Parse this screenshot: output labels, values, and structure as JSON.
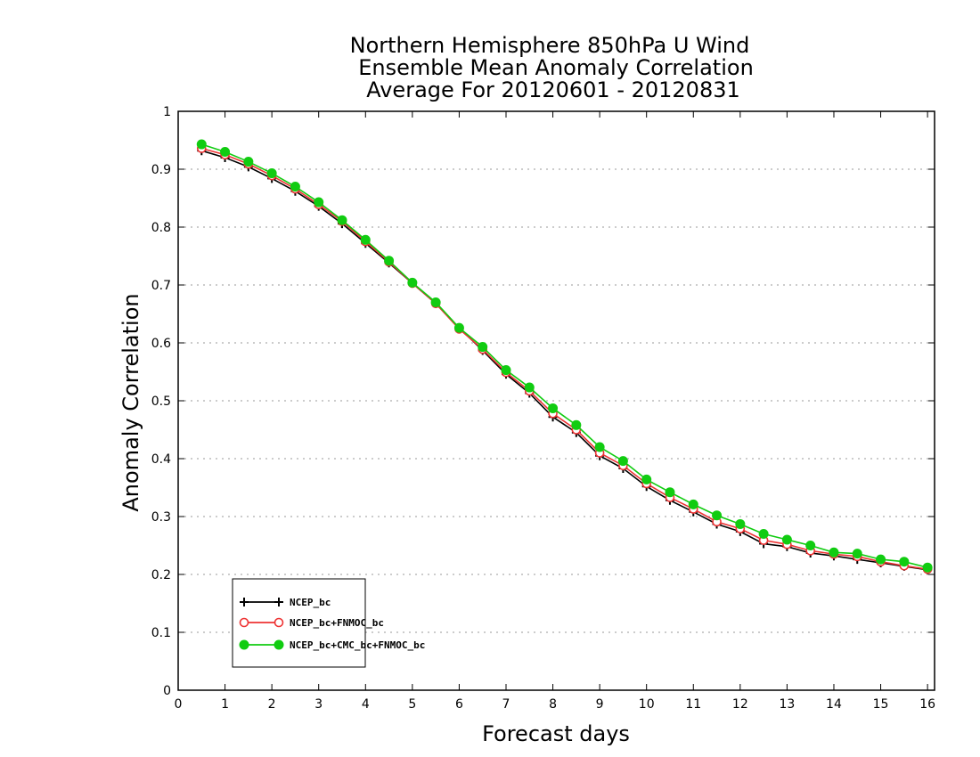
{
  "chart_data": {
    "type": "line",
    "title": "Northern Hemisphere 850hPa U Wind",
    "subtitle": "Ensemble Mean Anomaly Correlation",
    "subtitle2": "Average For 20120601 - 20120831",
    "xlabel": "Forecast days",
    "ylabel": "Anomaly Correlation",
    "xlim": [
      0,
      16.15
    ],
    "ylim": [
      0,
      1
    ],
    "xticks": [
      "0",
      "1",
      "2",
      "3",
      "4",
      "5",
      "6",
      "7",
      "8",
      "9",
      "10",
      "11",
      "12",
      "13",
      "14",
      "15",
      "16"
    ],
    "yticks": [
      "0",
      "0.1",
      "0.2",
      "0.3",
      "0.4",
      "0.5",
      "0.6",
      "0.7",
      "0.8",
      "0.9",
      "1"
    ],
    "grid": "horizontal dotted",
    "legend_position": "bottom-left",
    "x": [
      0.5,
      1,
      1.5,
      2,
      2.5,
      3,
      3.5,
      4,
      4.5,
      5,
      5.5,
      6,
      6.5,
      7,
      7.5,
      8,
      8.5,
      9,
      9.5,
      10,
      10.5,
      11,
      11.5,
      12,
      12.5,
      13,
      13.5,
      14,
      14.5,
      15,
      15.5,
      16
    ],
    "series": [
      {
        "name": "NCEP_bc",
        "color": "#000000",
        "marker": "plus",
        "values": [
          0.932,
          0.92,
          0.904,
          0.884,
          0.862,
          0.836,
          0.806,
          0.772,
          0.738,
          0.703,
          0.668,
          0.626,
          0.587,
          0.546,
          0.513,
          0.472,
          0.445,
          0.405,
          0.383,
          0.352,
          0.328,
          0.308,
          0.287,
          0.274,
          0.253,
          0.248,
          0.237,
          0.232,
          0.226,
          0.22,
          0.214,
          0.208
        ]
      },
      {
        "name": "NCEP_bc+FNMOC_bc",
        "color": "#ee3333",
        "marker": "open-circle",
        "values": [
          0.936,
          0.925,
          0.909,
          0.889,
          0.866,
          0.839,
          0.81,
          0.775,
          0.74,
          0.703,
          0.668,
          0.624,
          0.589,
          0.549,
          0.517,
          0.478,
          0.45,
          0.41,
          0.388,
          0.357,
          0.333,
          0.313,
          0.291,
          0.279,
          0.259,
          0.252,
          0.241,
          0.235,
          0.231,
          0.222,
          0.215,
          0.209
        ]
      },
      {
        "name": "NCEP_bc+CMC_bc+FNMOC_bc",
        "color": "#11cc11",
        "marker": "filled-circle",
        "values": [
          0.943,
          0.93,
          0.913,
          0.893,
          0.87,
          0.843,
          0.812,
          0.778,
          0.742,
          0.704,
          0.67,
          0.626,
          0.593,
          0.553,
          0.523,
          0.487,
          0.458,
          0.42,
          0.396,
          0.364,
          0.342,
          0.321,
          0.302,
          0.287,
          0.27,
          0.26,
          0.25,
          0.238,
          0.236,
          0.226,
          0.222,
          0.212
        ]
      }
    ]
  }
}
